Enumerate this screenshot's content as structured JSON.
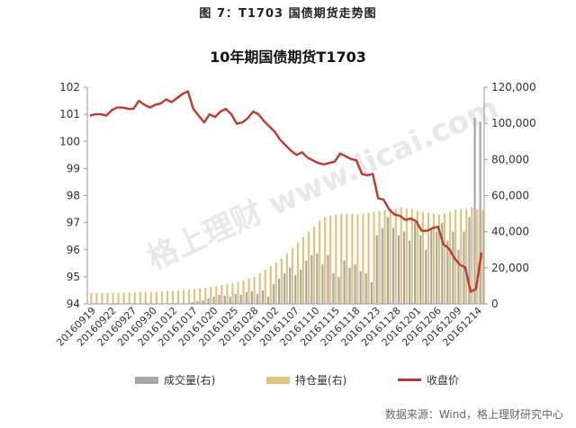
{
  "figure_caption": "图 7：T1703 国债期货走势图",
  "source": "数据来源：Wind，格上理财研究中心",
  "watermark": "格上理财 www.licai.com",
  "colors": {
    "volume": "#a6a6a6",
    "open_interest": "#e1c47c",
    "close": "#c0392b",
    "axis": "#999999",
    "text": "#333333"
  },
  "chart_data": {
    "type": "bar+line",
    "title": "10年期国债期货T1703",
    "left_axis": {
      "ticks": [
        "94",
        "95",
        "96",
        "97",
        "98",
        "99",
        "100",
        "101",
        "102"
      ],
      "ylim": [
        94,
        102
      ]
    },
    "right_axis": {
      "ticks": [
        "0",
        "20,000",
        "40,000",
        "60,000",
        "80,000",
        "100,000",
        "120,000"
      ],
      "ylim": [
        0,
        120000
      ]
    },
    "x_tick_labels": [
      "20160919",
      "20160922",
      "20160927",
      "20160930",
      "20161012",
      "20161017",
      "20161020",
      "20161025",
      "20161028",
      "20161102",
      "20161107",
      "20161110",
      "20161115",
      "20161118",
      "20161123",
      "20161128",
      "20161201",
      "20161206",
      "20161209",
      "20161214"
    ],
    "series": [
      {
        "name": "成交量(右)",
        "axis": "right",
        "values": [
          0,
          0,
          0,
          0,
          0,
          0,
          0,
          0,
          0,
          0,
          0,
          0,
          0,
          0,
          0,
          0,
          0,
          0,
          0,
          1000,
          1500,
          2000,
          3000,
          4000,
          5000,
          4500,
          4000,
          5500,
          5000,
          6500,
          7000,
          5500,
          7500,
          4000,
          11000,
          14000,
          17000,
          20000,
          16000,
          19000,
          24000,
          27000,
          28000,
          22000,
          27000,
          17000,
          15000,
          24000,
          20000,
          22000,
          18000,
          17000,
          12000,
          38000,
          42000,
          48000,
          42000,
          38000,
          40000,
          35000,
          45000,
          38000,
          30000,
          42000,
          40000,
          45000,
          35000,
          40000,
          30000,
          40000,
          48000,
          103000,
          101000
        ]
      },
      {
        "name": "持仓量(右)",
        "axis": "right",
        "values": [
          6000,
          6000,
          6000,
          6000,
          6200,
          6200,
          6300,
          6300,
          6400,
          6500,
          6600,
          6700,
          6800,
          7000,
          7200,
          7400,
          7600,
          7800,
          8000,
          8200,
          8500,
          9000,
          9500,
          10000,
          10500,
          11000,
          11500,
          12000,
          13000,
          14000,
          15000,
          17000,
          19000,
          21000,
          23000,
          25000,
          28000,
          31000,
          34000,
          37000,
          40000,
          43000,
          46000,
          48000,
          49000,
          49500,
          50000,
          50000,
          50000,
          49500,
          50000,
          50500,
          51000,
          51500,
          52000,
          52500,
          53000,
          53500,
          53000,
          52500,
          51500,
          51000,
          50500,
          50000,
          49500,
          50000,
          51000,
          52000,
          52500,
          53000,
          53500,
          52500,
          52000
        ]
      },
      {
        "name": "收盘价",
        "axis": "left",
        "values": [
          100.95,
          101.0,
          101.0,
          100.95,
          101.15,
          101.25,
          101.25,
          101.2,
          101.2,
          101.5,
          101.35,
          101.25,
          101.35,
          101.4,
          101.55,
          101.45,
          101.6,
          101.75,
          101.85,
          101.2,
          100.95,
          100.7,
          101.0,
          100.9,
          101.1,
          101.2,
          101.0,
          100.65,
          100.7,
          100.85,
          101.1,
          101.0,
          100.75,
          100.55,
          100.35,
          100.05,
          99.85,
          99.65,
          99.5,
          99.6,
          99.4,
          99.3,
          99.2,
          99.15,
          99.2,
          99.25,
          99.55,
          99.45,
          99.35,
          99.3,
          98.8,
          98.75,
          98.8,
          97.9,
          97.85,
          97.5,
          97.3,
          97.25,
          97.1,
          97.15,
          97.05,
          96.7,
          96.7,
          96.8,
          96.85,
          96.2,
          96.05,
          95.7,
          95.45,
          95.35,
          94.45,
          94.55,
          95.9
        ]
      }
    ],
    "grid": false,
    "legend_position": "bottom"
  }
}
